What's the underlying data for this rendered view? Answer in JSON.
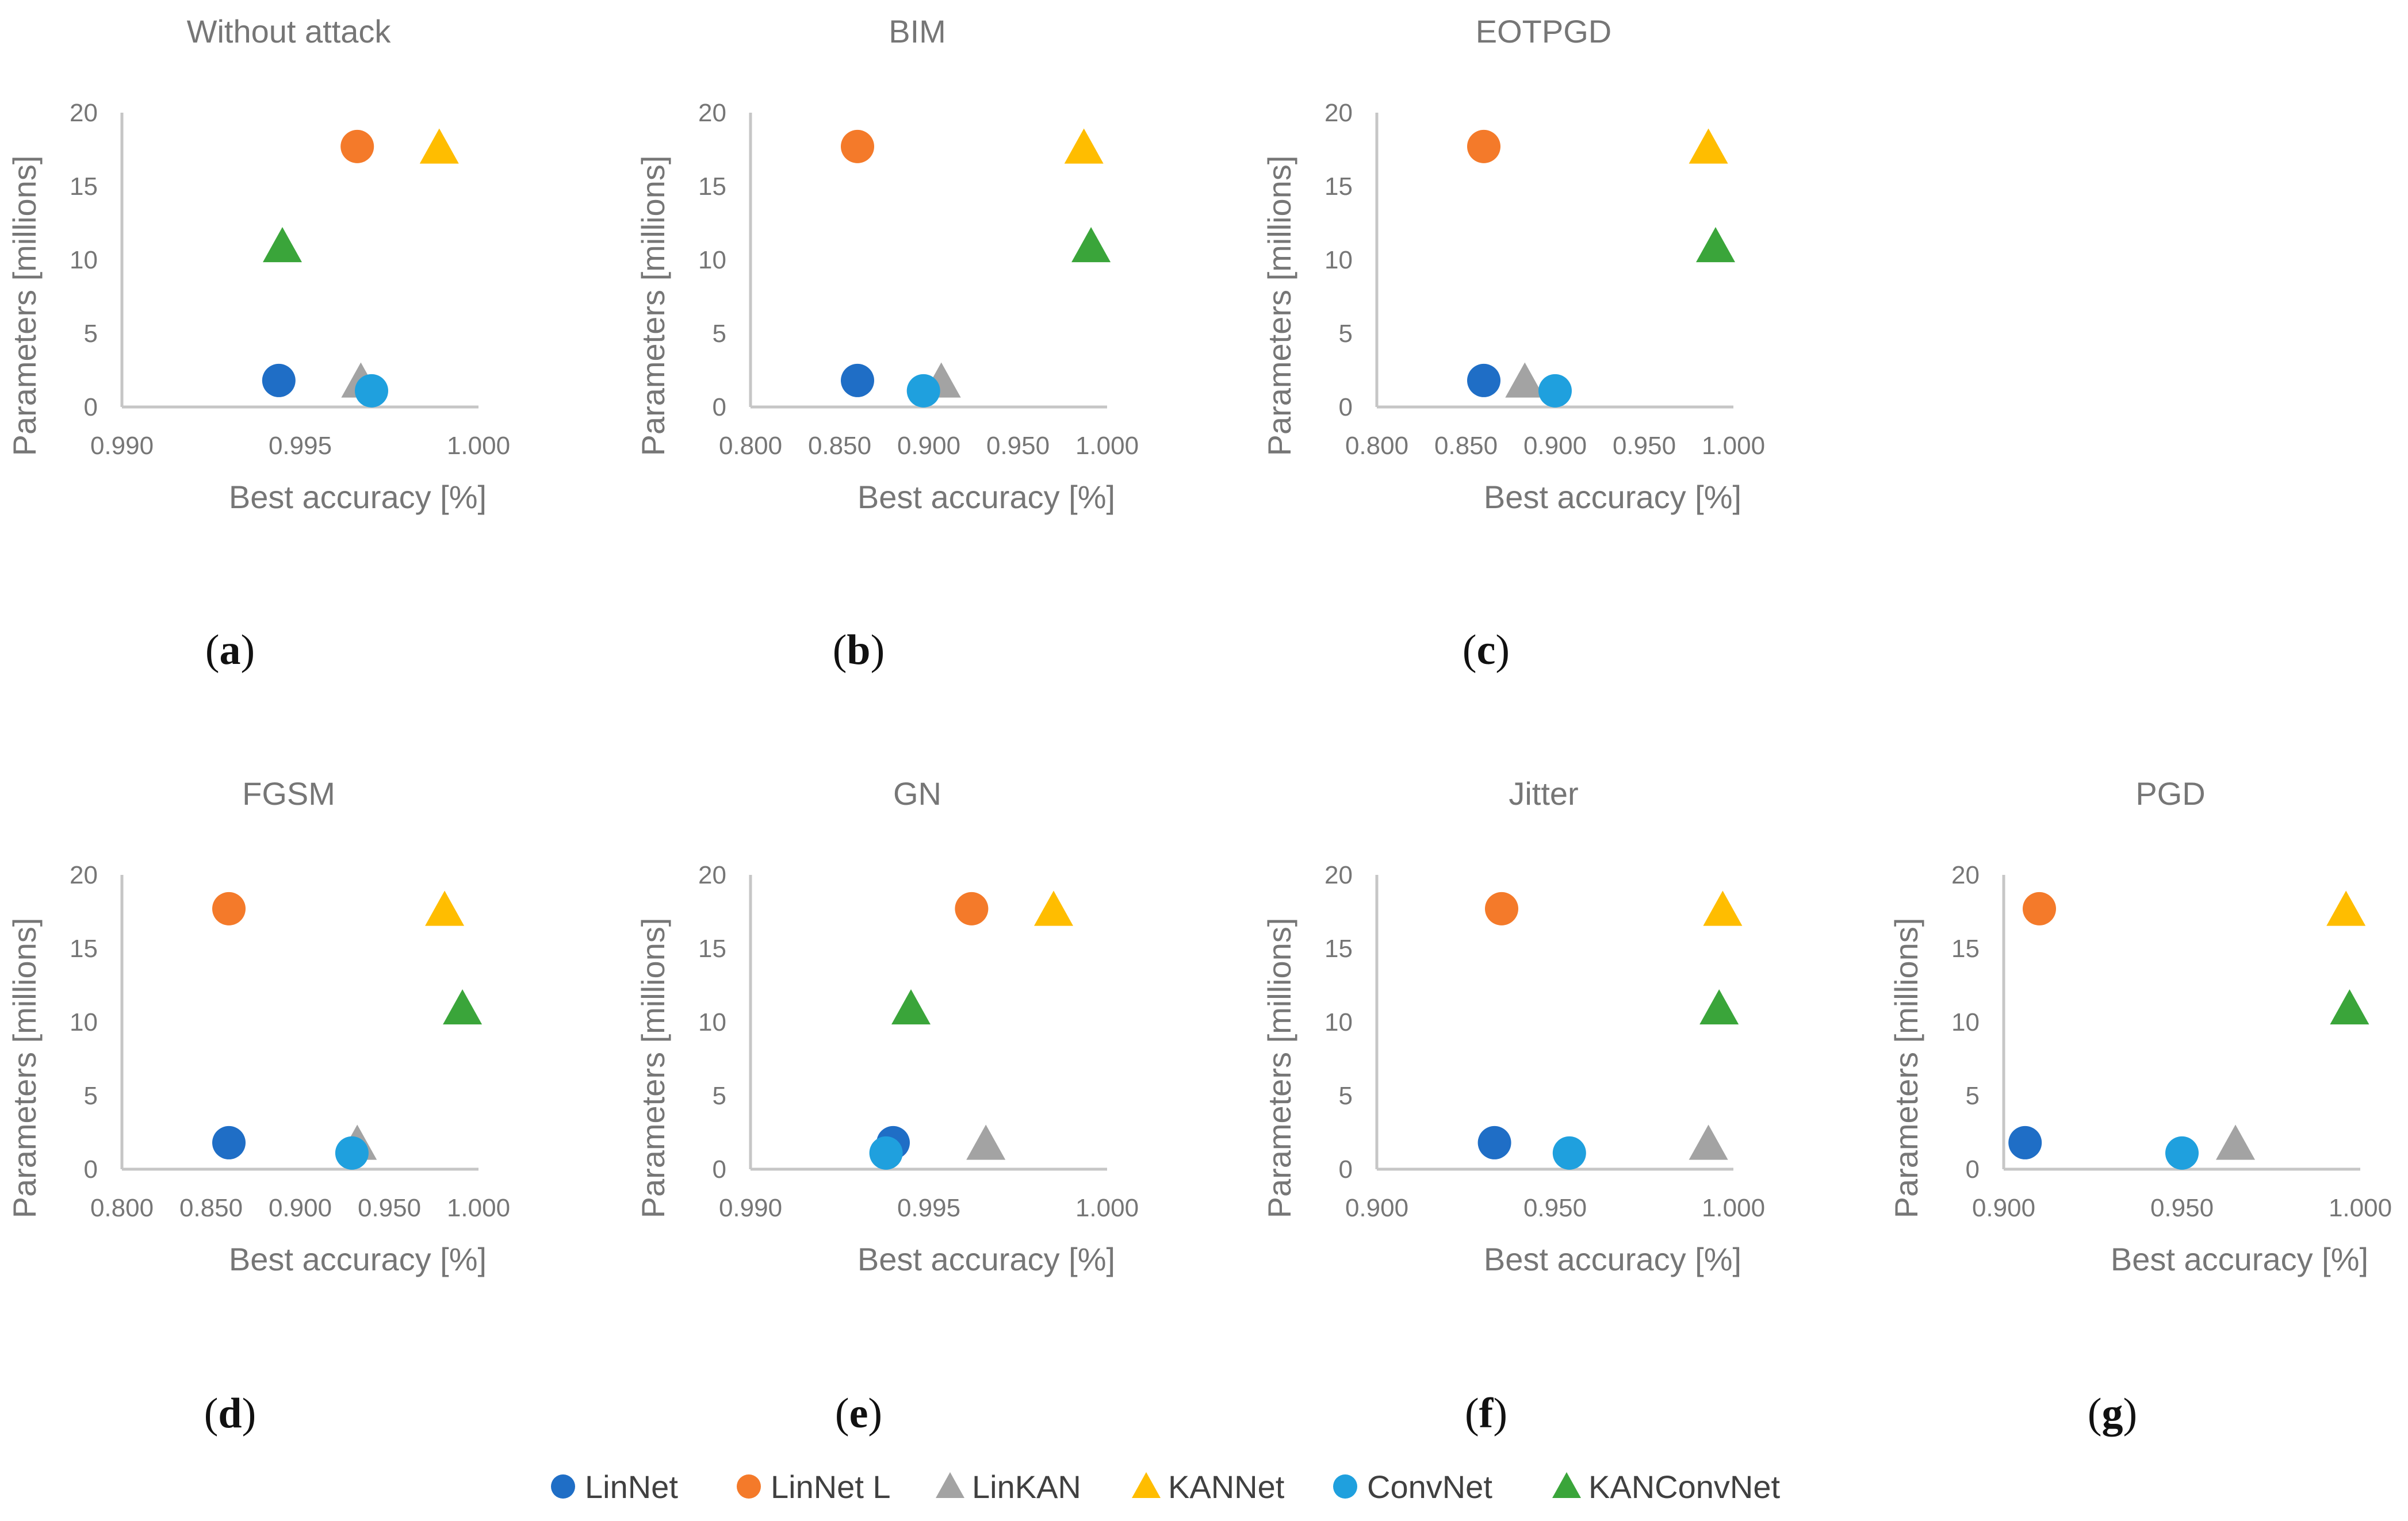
{
  "figure": {
    "series_colors": {
      "LinNet": "#1f6ec6",
      "LinNet L": "#f47a2a",
      "LinKAN": "#a3a3a3",
      "KANNet": "#ffbd00",
      "ConvNet": "#1fa0de",
      "KANConvNet": "#3aa53a"
    },
    "series_markers": {
      "LinNet": "circle",
      "LinNet L": "circle",
      "LinKAN": "triangle",
      "KANNet": "triangle",
      "ConvNet": "circle",
      "KANConvNet": "triangle"
    },
    "legend": [
      "LinNet",
      "LinNet L",
      "LinKAN",
      "KANNet",
      "ConvNet",
      "KANConvNet"
    ]
  },
  "chart_data": [
    {
      "type": "scatter",
      "panel": "a",
      "panel_label": "a",
      "title": "Without attack",
      "xlabel": "Best accuracy [%]",
      "ylabel": "Parameters [millions]",
      "xlim": [
        0.99,
        1.0
      ],
      "xticks": [
        "0.990",
        "0.995",
        "1.000"
      ],
      "ylim": [
        0,
        20
      ],
      "yticks": [
        "0",
        "5",
        "10",
        "15",
        "20"
      ],
      "series": [
        {
          "name": "LinNet",
          "x": 0.9944,
          "y": 1.8
        },
        {
          "name": "LinNet L",
          "x": 0.9966,
          "y": 17.7
        },
        {
          "name": "LinKAN",
          "x": 0.9967,
          "y": 1.7
        },
        {
          "name": "KANNet",
          "x": 0.9989,
          "y": 17.6
        },
        {
          "name": "ConvNet",
          "x": 0.997,
          "y": 1.1
        },
        {
          "name": "KANConvNet",
          "x": 0.9945,
          "y": 10.9
        }
      ]
    },
    {
      "type": "scatter",
      "panel": "b",
      "panel_label": "b",
      "title": "BIM",
      "xlabel": "Best accuracy [%]",
      "ylabel": "Parameters [millions]",
      "xlim": [
        0.8,
        1.0
      ],
      "xticks": [
        "0.800",
        "0.850",
        "0.900",
        "0.950",
        "1.000"
      ],
      "ylim": [
        0,
        20
      ],
      "yticks": [
        "0",
        "5",
        "10",
        "15",
        "20"
      ],
      "series": [
        {
          "name": "LinNet",
          "x": 0.86,
          "y": 1.8
        },
        {
          "name": "LinNet L",
          "x": 0.86,
          "y": 17.7
        },
        {
          "name": "LinKAN",
          "x": 0.907,
          "y": 1.7
        },
        {
          "name": "KANNet",
          "x": 0.987,
          "y": 17.6
        },
        {
          "name": "ConvNet",
          "x": 0.897,
          "y": 1.1
        },
        {
          "name": "KANConvNet",
          "x": 0.991,
          "y": 10.9
        }
      ]
    },
    {
      "type": "scatter",
      "panel": "c",
      "panel_label": "c",
      "title": "EOTPGD",
      "xlabel": "Best accuracy [%]",
      "ylabel": "Parameters [millions]",
      "xlim": [
        0.8,
        1.0
      ],
      "xticks": [
        "0.800",
        "0.850",
        "0.900",
        "0.950",
        "1.000"
      ],
      "ylim": [
        0,
        20
      ],
      "yticks": [
        "0",
        "5",
        "10",
        "15",
        "20"
      ],
      "series": [
        {
          "name": "LinNet",
          "x": 0.86,
          "y": 1.8
        },
        {
          "name": "LinNet L",
          "x": 0.86,
          "y": 17.7
        },
        {
          "name": "LinKAN",
          "x": 0.883,
          "y": 1.7
        },
        {
          "name": "KANNet",
          "x": 0.986,
          "y": 17.6
        },
        {
          "name": "ConvNet",
          "x": 0.9,
          "y": 1.1
        },
        {
          "name": "KANConvNet",
          "x": 0.99,
          "y": 10.9
        }
      ]
    },
    {
      "type": "scatter",
      "panel": "d",
      "panel_label": "d",
      "title": "FGSM",
      "xlabel": "Best accuracy [%]",
      "ylabel": "Parameters [millions]",
      "xlim": [
        0.8,
        1.0
      ],
      "xticks": [
        "0.800",
        "0.850",
        "0.900",
        "0.950",
        "1.000"
      ],
      "ylim": [
        0,
        20
      ],
      "yticks": [
        "0",
        "5",
        "10",
        "15",
        "20"
      ],
      "series": [
        {
          "name": "LinNet",
          "x": 0.86,
          "y": 1.8
        },
        {
          "name": "LinNet L",
          "x": 0.86,
          "y": 17.7
        },
        {
          "name": "LinKAN",
          "x": 0.932,
          "y": 1.7
        },
        {
          "name": "KANNet",
          "x": 0.981,
          "y": 17.6
        },
        {
          "name": "ConvNet",
          "x": 0.929,
          "y": 1.1
        },
        {
          "name": "KANConvNet",
          "x": 0.991,
          "y": 10.9
        }
      ]
    },
    {
      "type": "scatter",
      "panel": "e",
      "panel_label": "e",
      "title": "GN",
      "xlabel": "Best accuracy [%]",
      "ylabel": "Parameters [millions]",
      "xlim": [
        0.99,
        1.0
      ],
      "xticks": [
        "0.990",
        "0.995",
        "1.000"
      ],
      "ylim": [
        0,
        20
      ],
      "yticks": [
        "0",
        "5",
        "10",
        "15",
        "20"
      ],
      "series": [
        {
          "name": "LinNet",
          "x": 0.994,
          "y": 1.8
        },
        {
          "name": "LinNet L",
          "x": 0.9962,
          "y": 17.7
        },
        {
          "name": "LinKAN",
          "x": 0.9966,
          "y": 1.7
        },
        {
          "name": "KANNet",
          "x": 0.9985,
          "y": 17.6
        },
        {
          "name": "ConvNet",
          "x": 0.9938,
          "y": 1.1
        },
        {
          "name": "KANConvNet",
          "x": 0.9945,
          "y": 10.9
        }
      ]
    },
    {
      "type": "scatter",
      "panel": "f",
      "panel_label": "f",
      "title": "Jitter",
      "xlabel": "Best accuracy [%]",
      "ylabel": "Parameters [millions]",
      "xlim": [
        0.9,
        1.0
      ],
      "xticks": [
        "0.900",
        "0.950",
        "1.000"
      ],
      "ylim": [
        0,
        20
      ],
      "yticks": [
        "0",
        "5",
        "10",
        "15",
        "20"
      ],
      "series": [
        {
          "name": "LinNet",
          "x": 0.933,
          "y": 1.8
        },
        {
          "name": "LinNet L",
          "x": 0.935,
          "y": 17.7
        },
        {
          "name": "LinKAN",
          "x": 0.993,
          "y": 1.7
        },
        {
          "name": "KANNet",
          "x": 0.997,
          "y": 17.6
        },
        {
          "name": "ConvNet",
          "x": 0.954,
          "y": 1.1
        },
        {
          "name": "KANConvNet",
          "x": 0.996,
          "y": 10.9
        }
      ]
    },
    {
      "type": "scatter",
      "panel": "g",
      "panel_label": "g",
      "title": "PGD",
      "xlabel": "Best accuracy [%]",
      "ylabel": "Parameters [millions]",
      "xlim": [
        0.9,
        1.0
      ],
      "xticks": [
        "0.900",
        "0.950",
        "1.000"
      ],
      "ylim": [
        0,
        20
      ],
      "yticks": [
        "0",
        "5",
        "10",
        "15",
        "20"
      ],
      "series": [
        {
          "name": "LinNet",
          "x": 0.906,
          "y": 1.8
        },
        {
          "name": "LinNet L",
          "x": 0.91,
          "y": 17.7
        },
        {
          "name": "LinKAN",
          "x": 0.965,
          "y": 1.7
        },
        {
          "name": "KANNet",
          "x": 0.996,
          "y": 17.6
        },
        {
          "name": "ConvNet",
          "x": 0.95,
          "y": 1.1
        },
        {
          "name": "KANConvNet",
          "x": 0.997,
          "y": 10.9
        }
      ]
    }
  ]
}
